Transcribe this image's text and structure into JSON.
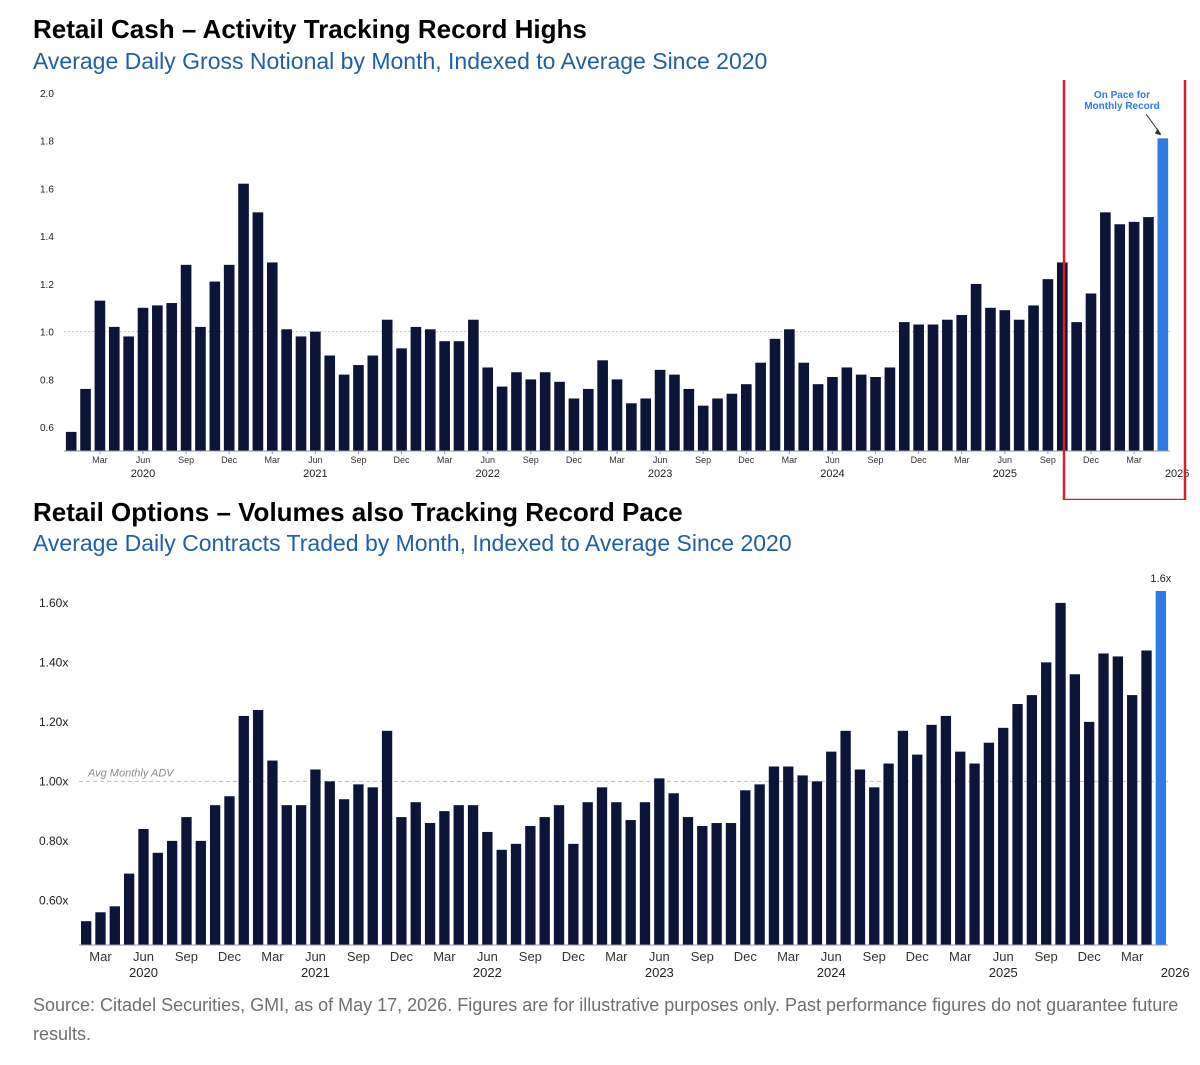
{
  "chart_data": [
    {
      "type": "bar",
      "title": "Retail Cash – Activity Tracking Record Highs",
      "subtitle": "Average Daily Gross Notional by Month, Indexed to Average Since 2020",
      "ylim": [
        0.5,
        2.0
      ],
      "yticks": [
        "0.6",
        "0.8",
        "1.0",
        "1.2",
        "1.4",
        "1.6",
        "1.8",
        "2.0"
      ],
      "reference_line": 1.0,
      "month_ticks": [
        "Mar",
        "Jun",
        "Sep",
        "Dec",
        "Mar",
        "Jun",
        "Sep",
        "Dec",
        "Mar",
        "Jun",
        "Sep",
        "Dec",
        "Mar",
        "Jun",
        "Sep",
        "Dec",
        "Mar",
        "Jun",
        "Sep",
        "Dec",
        "Mar",
        "Jun",
        "Sep",
        "Dec",
        "Mar"
      ],
      "year_ticks": [
        "2020",
        "2021",
        "2022",
        "2023",
        "2024",
        "2025",
        "2026"
      ],
      "annotation": "On Pace for Monthly Record",
      "highlight_color": "#2f7ae5",
      "bar_color": "#0c1437",
      "box_color": "#d81e2a",
      "values": [
        0.58,
        0.76,
        1.13,
        1.02,
        0.98,
        1.1,
        1.11,
        1.12,
        1.28,
        1.02,
        1.21,
        1.28,
        1.62,
        1.5,
        1.29,
        1.01,
        0.98,
        1.0,
        0.9,
        0.82,
        0.86,
        0.9,
        1.05,
        0.93,
        1.02,
        1.01,
        0.96,
        0.96,
        1.05,
        0.85,
        0.77,
        0.83,
        0.8,
        0.83,
        0.79,
        0.72,
        0.76,
        0.88,
        0.8,
        0.7,
        0.72,
        0.84,
        0.82,
        0.76,
        0.69,
        0.72,
        0.74,
        0.78,
        0.87,
        0.97,
        1.01,
        0.87,
        0.78,
        0.81,
        0.85,
        0.82,
        0.81,
        0.85,
        1.04,
        1.03,
        1.03,
        1.05,
        1.07,
        1.2,
        1.1,
        1.09,
        1.05,
        1.11,
        1.22,
        1.29,
        1.04,
        1.16,
        1.5,
        1.45,
        1.46,
        1.48,
        1.81
      ]
    },
    {
      "type": "bar",
      "title": "Retail Options – Volumes also Tracking Record Pace",
      "subtitle": "Average Daily Contracts Traded by Month, Indexed to Average Since 2020",
      "ylim": [
        0.45,
        1.65
      ],
      "yticks": [
        "0.60x",
        "0.80x",
        "1.00x",
        "1.20x",
        "1.40x",
        "1.60x"
      ],
      "reference_line": 1.0,
      "reference_label": "Avg Monthly ADV",
      "last_label": "1.6x",
      "month_ticks": [
        "Mar",
        "Jun",
        "Sep",
        "Dec",
        "Mar",
        "Jun",
        "Sep",
        "Dec",
        "Mar",
        "Jun",
        "Sep",
        "Dec",
        "Mar",
        "Jun",
        "Sep",
        "Dec",
        "Mar",
        "Jun",
        "Sep",
        "Dec",
        "Mar",
        "Jun",
        "Sep",
        "Dec",
        "Mar"
      ],
      "year_ticks": [
        "2020",
        "2021",
        "2022",
        "2023",
        "2024",
        "2025",
        "2026"
      ],
      "highlight_color": "#2f7ae5",
      "bar_color": "#0c1437",
      "values": [
        0.53,
        0.56,
        0.58,
        0.69,
        0.84,
        0.76,
        0.8,
        0.88,
        0.8,
        0.92,
        0.95,
        1.22,
        1.24,
        1.07,
        0.92,
        0.92,
        1.04,
        1.0,
        0.94,
        0.99,
        0.98,
        1.17,
        0.88,
        0.93,
        0.86,
        0.9,
        0.92,
        0.92,
        0.83,
        0.77,
        0.79,
        0.85,
        0.88,
        0.92,
        0.79,
        0.93,
        0.98,
        0.93,
        0.87,
        0.93,
        1.01,
        0.96,
        0.88,
        0.85,
        0.86,
        0.86,
        0.97,
        0.99,
        1.05,
        1.05,
        1.02,
        1.0,
        1.1,
        1.17,
        1.04,
        0.98,
        1.06,
        1.17,
        1.09,
        1.19,
        1.22,
        1.1,
        1.06,
        1.13,
        1.18,
        1.26,
        1.29,
        1.4,
        1.6,
        1.36,
        1.2,
        1.43,
        1.42,
        1.29,
        1.44,
        1.64
      ]
    }
  ],
  "source_note": "Source: Citadel Securities, GMI, as of May 17, 2026. Figures are for illustrative purposes only. Past performance figures do not guarantee future results."
}
